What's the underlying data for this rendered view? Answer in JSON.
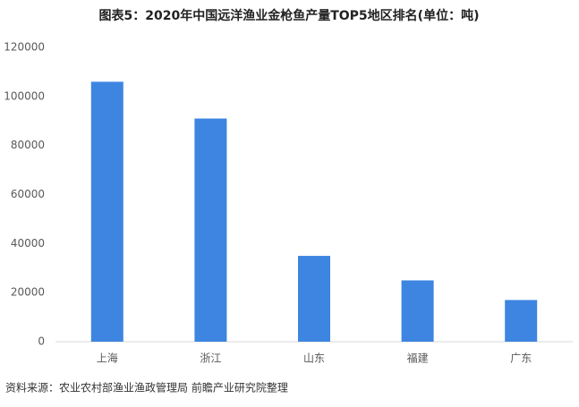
{
  "chart_data": {
    "type": "bar",
    "title": "图表5：2020年中国远洋渔业金枪鱼产量TOP5地区排名(单位：吨)",
    "categories": [
      "上海",
      "浙江",
      "山东",
      "福建",
      "广东"
    ],
    "values": [
      106000,
      91000,
      35000,
      25000,
      17000
    ],
    "color": "#3d85e0",
    "ylim": [
      0,
      120000
    ],
    "yticks": [
      0,
      20000,
      40000,
      60000,
      80000,
      100000,
      120000
    ],
    "grid": false,
    "source": "资料来源：农业农村部渔业渔政管理局 前瞻产业研究院整理"
  }
}
